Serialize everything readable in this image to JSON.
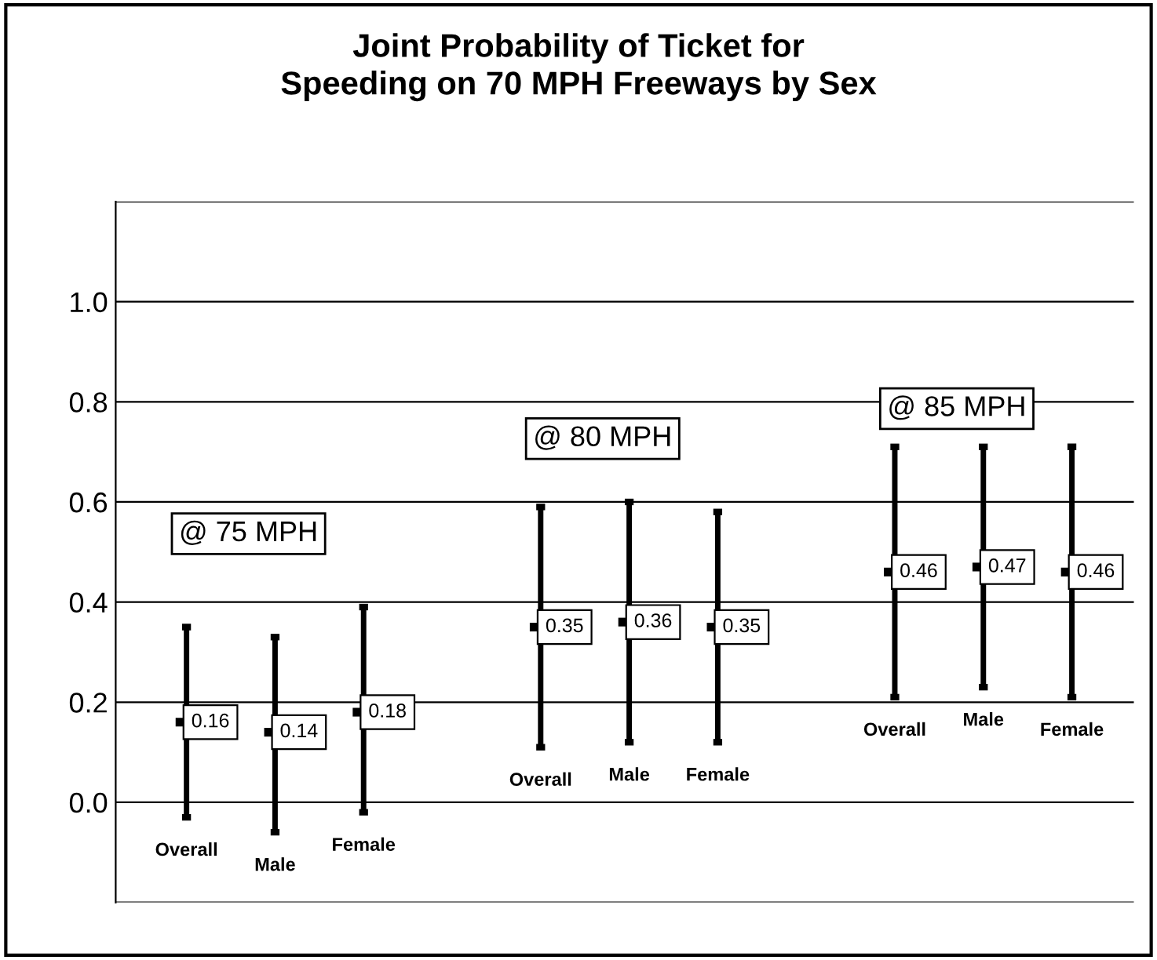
{
  "chart_data": {
    "type": "scatter",
    "title": "Joint Probability of Ticket for\nSpeeding on 70 MPH Freeways by Sex",
    "categories": [
      "Overall",
      "Male",
      "Female",
      null,
      "Overall",
      "Male",
      "Female",
      null,
      "Overall",
      "Male",
      "Female"
    ],
    "values": [
      0.16,
      0.14,
      0.18,
      null,
      0.35,
      0.36,
      0.35,
      null,
      0.46,
      0.47,
      0.46
    ],
    "errors": [
      [
        -0.03,
        0.35
      ],
      [
        -0.06,
        0.33
      ],
      [
        -0.02,
        0.39
      ],
      null,
      [
        0.11,
        0.59
      ],
      [
        0.12,
        0.6
      ],
      [
        0.12,
        0.58
      ],
      null,
      [
        0.21,
        0.71
      ],
      [
        0.23,
        0.71
      ],
      [
        0.21,
        0.71
      ]
    ],
    "color": "#000000",
    "data_labels": true,
    "annotations": [
      "@ 75 MPH",
      "@ 80 MPH",
      "@ 85 MPH"
    ],
    "ylim": [
      -0.2,
      1.2
    ],
    "yticks": [
      {
        "value": -0.2,
        "label": null
      },
      {
        "value": 0.0,
        "label": "0.0"
      },
      0.2,
      0.4,
      0.6,
      0.8,
      {
        "value": 1.0,
        "label": "1.0"
      },
      {
        "value": 1.2,
        "label": null
      }
    ],
    "grid": "y",
    "tick_labels": "y"
  }
}
